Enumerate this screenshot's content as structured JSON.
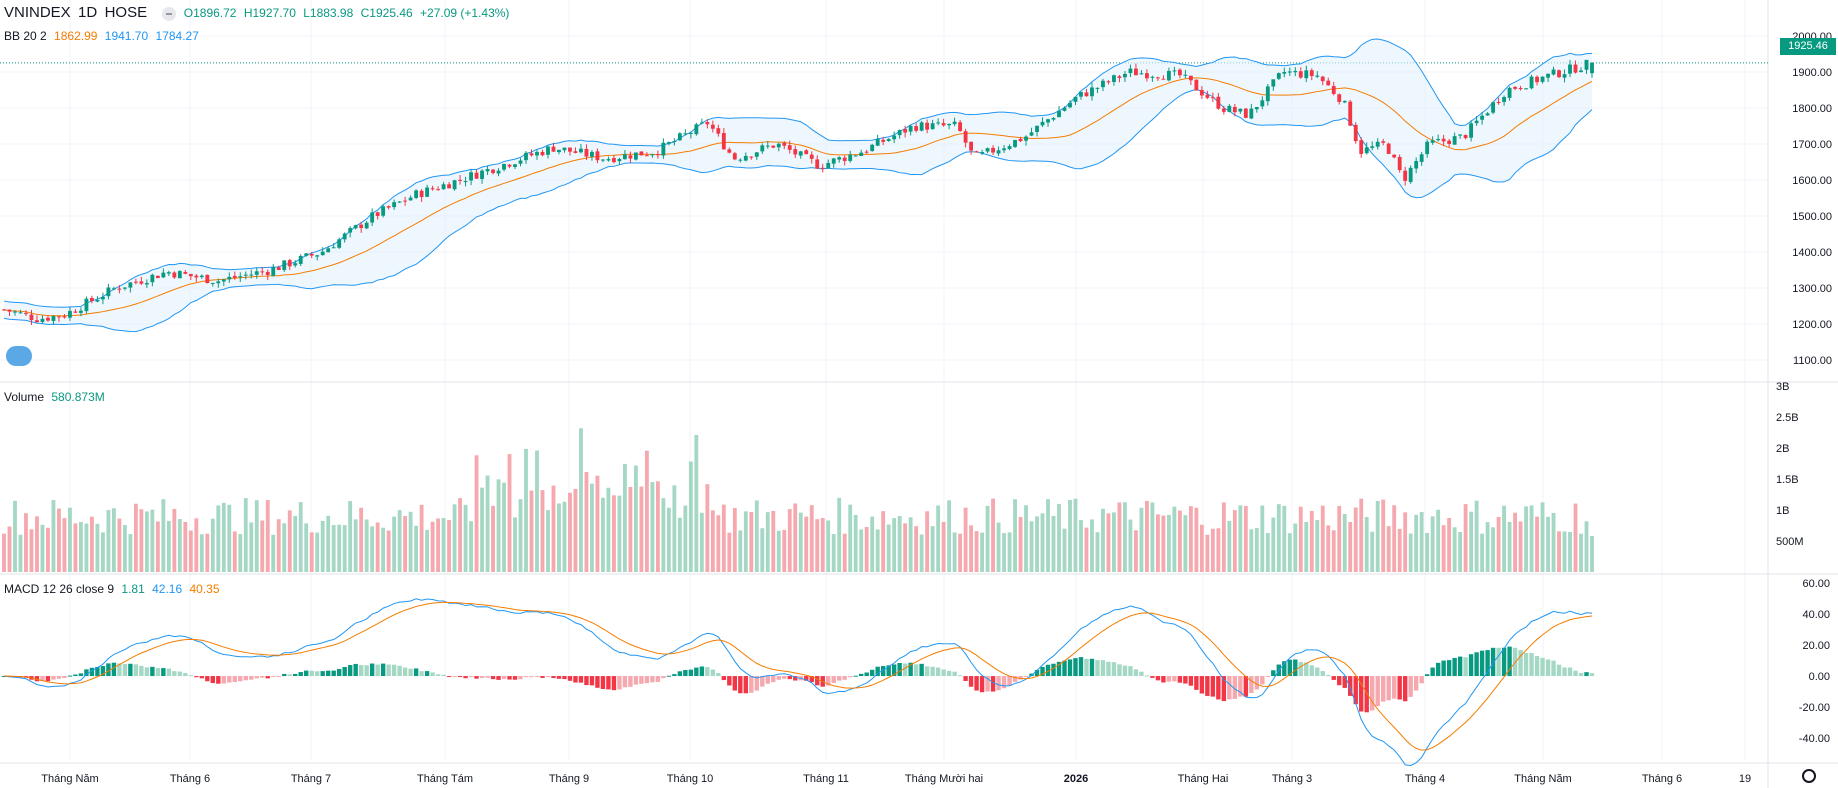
{
  "header": {
    "symbol": "VNINDEX",
    "interval": "1D",
    "exchange": "HOSE",
    "open_label": "O1896.72",
    "high_label": "H1927.70",
    "low_label": "L1883.98",
    "close_label": "C1925.46",
    "change_label": "+27.09 (+1.43%)"
  },
  "indicators": {
    "bb": {
      "label": "BB 20 2",
      "basis": "1862.99",
      "upper": "1941.70",
      "lower": "1784.27"
    },
    "volume": {
      "label": "Volume",
      "value": "580.873M"
    },
    "macd": {
      "label": "MACD 12 26 close 9",
      "hist": "1.81",
      "macd": "42.16",
      "signal": "40.35"
    }
  },
  "price_badge": "1925.46",
  "colors": {
    "up": "#089981",
    "down": "#f23645",
    "up_vol": "#a5d8c4",
    "down_vol": "#f5a8ae",
    "macd_line": "#2196f3",
    "signal_line": "#f57c00",
    "bb_fill": "#e3f2fd",
    "bb_band": "#2196f3",
    "bb_basis": "#f57c00",
    "grid": "#f0f3fa"
  },
  "axes": {
    "price_ticks": [
      "2000.00",
      "1900.00",
      "1800.00",
      "1700.00",
      "1600.00",
      "1500.00",
      "1400.00",
      "1300.00",
      "1200.00",
      "1100.00"
    ],
    "volume_ticks": [
      "3B",
      "2.5B",
      "2B",
      "1.5B",
      "1B",
      "500M"
    ],
    "macd_ticks": [
      "60.00",
      "40.00",
      "20.00",
      "0.00",
      "-20.00",
      "-40.00"
    ],
    "time_labels": [
      "Tháng Năm",
      "Tháng 6",
      "Tháng 7",
      "Tháng Tám",
      "Tháng 9",
      "Tháng 10",
      "Tháng 11",
      "Tháng Mười hai",
      "2026",
      "Tháng Hai",
      "Tháng 3",
      "Tháng 4",
      "Tháng Năm",
      "Tháng 6",
      "19"
    ]
  },
  "chart_data": [
    {
      "type": "candlestick",
      "title": "VNINDEX 1D HOSE",
      "ylim": [
        1050,
        2050
      ],
      "key_points": [
        {
          "x": "start",
          "close": 1240
        },
        {
          "x": "Tháng Năm",
          "close": 1210
        },
        {
          "x": "Tháng 6",
          "close": 1330
        },
        {
          "x": "Tháng 7",
          "close": 1360
        },
        {
          "x": "Tháng Tám",
          "close": 1530
        },
        {
          "x": "Tháng 9",
          "close": 1670
        },
        {
          "x": "Tháng 10",
          "close": 1650
        },
        {
          "x": "Tháng 11",
          "close": 1630
        },
        {
          "x": "Tháng Mười hai",
          "close": 1680
        },
        {
          "x": "2026",
          "close": 1830
        },
        {
          "x": "Tháng Hai",
          "close": 1820
        },
        {
          "x": "Tháng 3",
          "close": 1880
        },
        {
          "x": "Tháng 4",
          "close": 1650
        },
        {
          "x": "Tháng Năm",
          "close": 1890
        },
        {
          "x": "last",
          "open": 1896.72,
          "high": 1927.7,
          "low": 1883.98,
          "close": 1925.46
        }
      ],
      "bollinger": {
        "length": 20,
        "mult": 2,
        "basis_last": 1862.99,
        "upper_last": 1941.7,
        "lower_last": 1784.27
      }
    },
    {
      "type": "bar",
      "title": "Volume",
      "ylim": [
        0,
        3000000000
      ],
      "last_value": 580873000
    },
    {
      "type": "line",
      "title": "MACD 12 26 close 9",
      "ylim": [
        -50,
        65
      ],
      "series": [
        {
          "name": "MACD",
          "last": 42.16
        },
        {
          "name": "Signal",
          "last": 40.35
        },
        {
          "name": "Histogram",
          "last": 1.81
        }
      ]
    }
  ]
}
